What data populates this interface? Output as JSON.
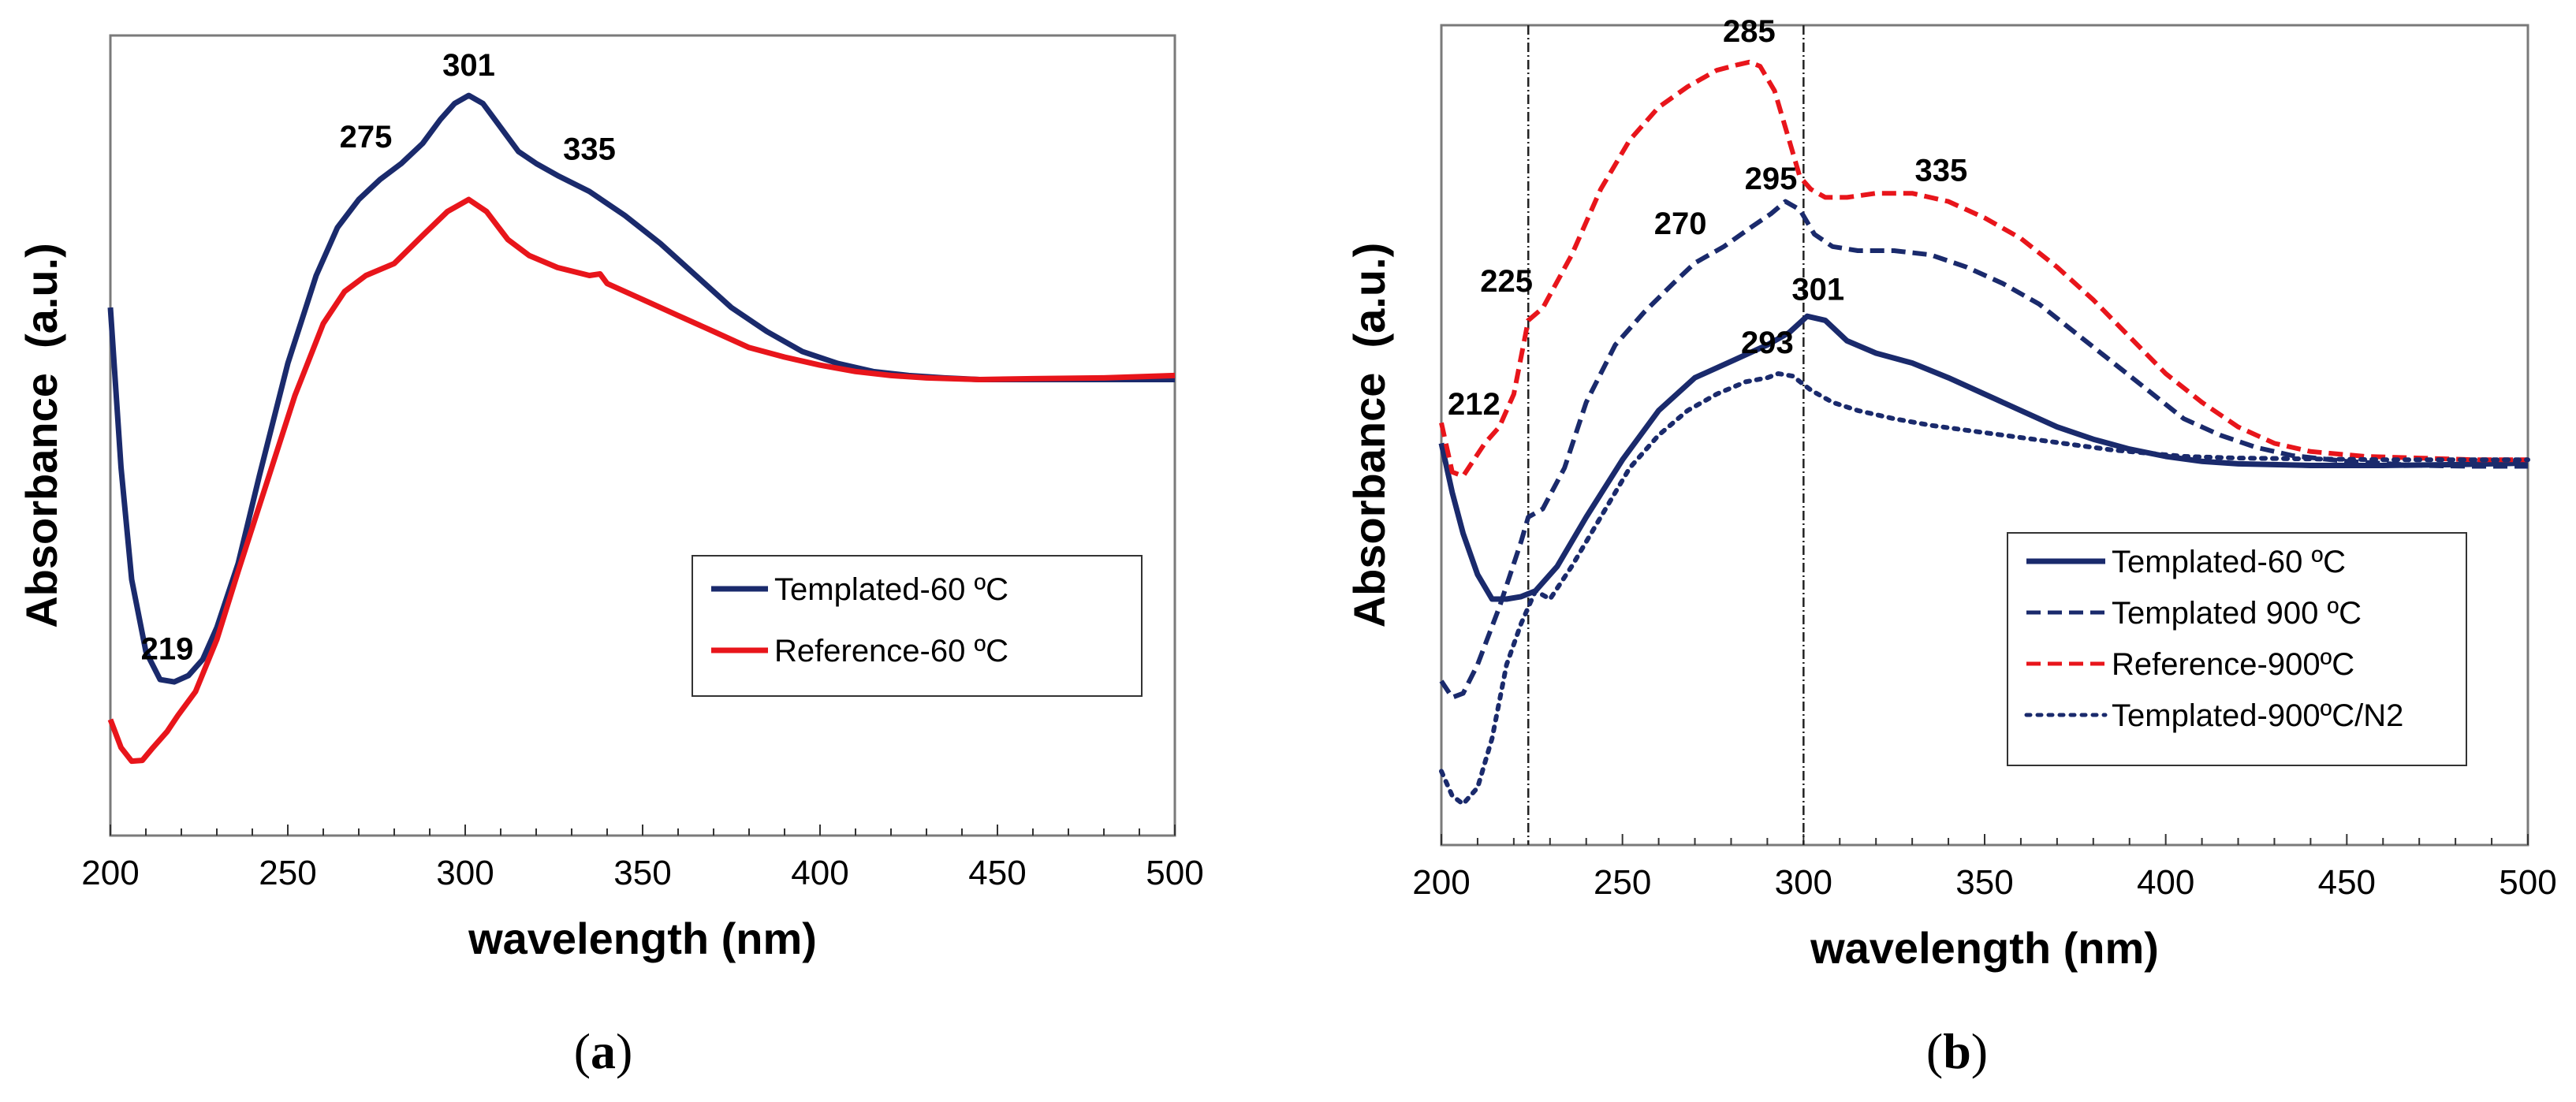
{
  "chart_data": [
    {
      "panel": "a",
      "panel_label": "a",
      "type": "line",
      "xlabel": "wavelength (nm)",
      "ylabel": "Absorbance  (a.u.)",
      "xlim": [
        200,
        500
      ],
      "ylim": [
        0,
        1
      ],
      "x_ticks": [
        "200",
        "250",
        "300",
        "350",
        "400",
        "450",
        "500"
      ],
      "y_ticks": [],
      "legend_position": "center-right",
      "colors": {
        "navy": "#1a2a6c",
        "red": "#e8151b"
      },
      "series": [
        {
          "name": "Templated-60 ºC",
          "color": "#1a2a6c",
          "style": "solid",
          "points": [
            [
              200,
              0.66
            ],
            [
              203,
              0.46
            ],
            [
              206,
              0.32
            ],
            [
              210,
              0.23
            ],
            [
              214,
              0.195
            ],
            [
              218,
              0.192
            ],
            [
              222,
              0.2
            ],
            [
              226,
              0.22
            ],
            [
              230,
              0.26
            ],
            [
              236,
              0.34
            ],
            [
              242,
              0.45
            ],
            [
              250,
              0.59
            ],
            [
              258,
              0.7
            ],
            [
              264,
              0.76
            ],
            [
              270,
              0.795
            ],
            [
              276,
              0.82
            ],
            [
              282,
              0.84
            ],
            [
              288,
              0.865
            ],
            [
              293,
              0.895
            ],
            [
              297,
              0.915
            ],
            [
              301,
              0.925
            ],
            [
              305,
              0.915
            ],
            [
              310,
              0.885
            ],
            [
              315,
              0.855
            ],
            [
              320,
              0.84
            ],
            [
              326,
              0.825
            ],
            [
              335,
              0.805
            ],
            [
              345,
              0.775
            ],
            [
              355,
              0.74
            ],
            [
              365,
              0.7
            ],
            [
              375,
              0.66
            ],
            [
              385,
              0.63
            ],
            [
              395,
              0.605
            ],
            [
              405,
              0.59
            ],
            [
              415,
              0.58
            ],
            [
              425,
              0.575
            ],
            [
              435,
              0.572
            ],
            [
              445,
              0.57
            ],
            [
              460,
              0.57
            ],
            [
              480,
              0.57
            ],
            [
              500,
              0.57
            ]
          ]
        },
        {
          "name": "Reference-60 ºC",
          "color": "#e8151b",
          "style": "solid",
          "points": [
            [
              200,
              0.145
            ],
            [
              203,
              0.11
            ],
            [
              206,
              0.093
            ],
            [
              209,
              0.094
            ],
            [
              212,
              0.11
            ],
            [
              216,
              0.13
            ],
            [
              219,
              0.15
            ],
            [
              224,
              0.18
            ],
            [
              230,
              0.245
            ],
            [
              236,
              0.33
            ],
            [
              244,
              0.44
            ],
            [
              252,
              0.55
            ],
            [
              260,
              0.64
            ],
            [
              266,
              0.68
            ],
            [
              272,
              0.7
            ],
            [
              280,
              0.715
            ],
            [
              288,
              0.75
            ],
            [
              295,
              0.78
            ],
            [
              301,
              0.795
            ],
            [
              306,
              0.78
            ],
            [
              312,
              0.745
            ],
            [
              318,
              0.725
            ],
            [
              326,
              0.71
            ],
            [
              335,
              0.7
            ],
            [
              338,
              0.702
            ],
            [
              340,
              0.69
            ],
            [
              350,
              0.67
            ],
            [
              360,
              0.65
            ],
            [
              370,
              0.63
            ],
            [
              380,
              0.61
            ],
            [
              390,
              0.598
            ],
            [
              400,
              0.588
            ],
            [
              410,
              0.58
            ],
            [
              420,
              0.575
            ],
            [
              430,
              0.572
            ],
            [
              445,
              0.57
            ],
            [
              460,
              0.571
            ],
            [
              480,
              0.572
            ],
            [
              500,
              0.575
            ]
          ]
        }
      ],
      "annotations": [
        {
          "text": "301",
          "x": 301,
          "y": 0.95
        },
        {
          "text": "275",
          "x": 272,
          "y": 0.86
        },
        {
          "text": "335",
          "x": 335,
          "y": 0.845
        },
        {
          "text": "219",
          "x": 216,
          "y": 0.22
        }
      ]
    },
    {
      "panel": "b",
      "panel_label": "b",
      "type": "line",
      "xlabel": "wavelength (nm)",
      "ylabel": "Absorbance  (a.u.)",
      "xlim": [
        200,
        500
      ],
      "ylim": [
        0,
        1
      ],
      "x_ticks": [
        "200",
        "250",
        "300",
        "350",
        "400",
        "450",
        "500"
      ],
      "y_ticks": [],
      "legend_position": "bottom-right",
      "vertical_lines": [
        224,
        300
      ],
      "colors": {
        "navy": "#1a2a6c",
        "red": "#e8151b"
      },
      "series": [
        {
          "name": "Templated-60 ºC",
          "color": "#1a2a6c",
          "style": "solid",
          "points": [
            [
              200,
              0.49
            ],
            [
              203,
              0.43
            ],
            [
              206,
              0.38
            ],
            [
              210,
              0.33
            ],
            [
              214,
              0.3
            ],
            [
              218,
              0.3
            ],
            [
              222,
              0.303
            ],
            [
              226,
              0.31
            ],
            [
              232,
              0.34
            ],
            [
              240,
              0.4
            ],
            [
              250,
              0.47
            ],
            [
              260,
              0.53
            ],
            [
              270,
              0.57
            ],
            [
              280,
              0.59
            ],
            [
              290,
              0.61
            ],
            [
              296,
              0.625
            ],
            [
              301,
              0.645
            ],
            [
              306,
              0.64
            ],
            [
              312,
              0.615
            ],
            [
              320,
              0.6
            ],
            [
              330,
              0.588
            ],
            [
              340,
              0.57
            ],
            [
              350,
              0.55
            ],
            [
              360,
              0.53
            ],
            [
              370,
              0.51
            ],
            [
              380,
              0.495
            ],
            [
              390,
              0.483
            ],
            [
              400,
              0.474
            ],
            [
              410,
              0.468
            ],
            [
              420,
              0.465
            ],
            [
              440,
              0.463
            ],
            [
              460,
              0.463
            ],
            [
              480,
              0.464
            ],
            [
              500,
              0.466
            ]
          ]
        },
        {
          "name": "Templated 900 ºC",
          "color": "#1a2a6c",
          "style": "dashed",
          "points": [
            [
              200,
              0.2
            ],
            [
              203,
              0.18
            ],
            [
              206,
              0.185
            ],
            [
              210,
              0.22
            ],
            [
              216,
              0.29
            ],
            [
              222,
              0.37
            ],
            [
              224,
              0.4
            ],
            [
              228,
              0.41
            ],
            [
              234,
              0.46
            ],
            [
              240,
              0.54
            ],
            [
              248,
              0.61
            ],
            [
              256,
              0.65
            ],
            [
              264,
              0.685
            ],
            [
              270,
              0.71
            ],
            [
              278,
              0.73
            ],
            [
              286,
              0.755
            ],
            [
              291,
              0.77
            ],
            [
              295,
              0.785
            ],
            [
              299,
              0.775
            ],
            [
              303,
              0.745
            ],
            [
              308,
              0.73
            ],
            [
              315,
              0.725
            ],
            [
              325,
              0.725
            ],
            [
              335,
              0.72
            ],
            [
              345,
              0.705
            ],
            [
              355,
              0.685
            ],
            [
              365,
              0.66
            ],
            [
              375,
              0.625
            ],
            [
              385,
              0.59
            ],
            [
              395,
              0.555
            ],
            [
              405,
              0.52
            ],
            [
              415,
              0.5
            ],
            [
              425,
              0.485
            ],
            [
              435,
              0.475
            ],
            [
              450,
              0.468
            ],
            [
              470,
              0.463
            ],
            [
              485,
              0.462
            ],
            [
              500,
              0.462
            ]
          ]
        },
        {
          "name": "Reference-900ºC",
          "color": "#e8151b",
          "style": "dashed",
          "points": [
            [
              200,
              0.515
            ],
            [
              203,
              0.455
            ],
            [
              206,
              0.45
            ],
            [
              209,
              0.47
            ],
            [
              212,
              0.49
            ],
            [
              216,
              0.51
            ],
            [
              220,
              0.55
            ],
            [
              224,
              0.64
            ],
            [
              228,
              0.655
            ],
            [
              236,
              0.72
            ],
            [
              244,
              0.8
            ],
            [
              252,
              0.86
            ],
            [
              260,
              0.9
            ],
            [
              268,
              0.925
            ],
            [
              276,
              0.945
            ],
            [
              282,
              0.952
            ],
            [
              285,
              0.955
            ],
            [
              288,
              0.95
            ],
            [
              292,
              0.92
            ],
            [
              296,
              0.86
            ],
            [
              299,
              0.815
            ],
            [
              302,
              0.8
            ],
            [
              306,
              0.79
            ],
            [
              312,
              0.79
            ],
            [
              320,
              0.795
            ],
            [
              330,
              0.795
            ],
            [
              340,
              0.785
            ],
            [
              350,
              0.765
            ],
            [
              360,
              0.74
            ],
            [
              370,
              0.705
            ],
            [
              380,
              0.665
            ],
            [
              390,
              0.62
            ],
            [
              400,
              0.575
            ],
            [
              410,
              0.54
            ],
            [
              420,
              0.51
            ],
            [
              430,
              0.49
            ],
            [
              440,
              0.48
            ],
            [
              455,
              0.474
            ],
            [
              470,
              0.472
            ],
            [
              485,
              0.47
            ],
            [
              500,
              0.47
            ]
          ]
        },
        {
          "name": "Templated-900ºC/N2",
          "color": "#1a2a6c",
          "style": "dotted",
          "points": [
            [
              200,
              0.09
            ],
            [
              203,
              0.06
            ],
            [
              206,
              0.05
            ],
            [
              210,
              0.07
            ],
            [
              214,
              0.13
            ],
            [
              218,
              0.22
            ],
            [
              222,
              0.27
            ],
            [
              226,
              0.31
            ],
            [
              230,
              0.3
            ],
            [
              236,
              0.34
            ],
            [
              244,
              0.4
            ],
            [
              252,
              0.46
            ],
            [
              260,
              0.5
            ],
            [
              268,
              0.53
            ],
            [
              276,
              0.55
            ],
            [
              284,
              0.565
            ],
            [
              290,
              0.57
            ],
            [
              293,
              0.575
            ],
            [
              297,
              0.572
            ],
            [
              302,
              0.555
            ],
            [
              308,
              0.54
            ],
            [
              315,
              0.53
            ],
            [
              325,
              0.52
            ],
            [
              335,
              0.512
            ],
            [
              345,
              0.506
            ],
            [
              355,
              0.5
            ],
            [
              365,
              0.494
            ],
            [
              375,
              0.488
            ],
            [
              385,
              0.482
            ],
            [
              395,
              0.478
            ],
            [
              405,
              0.474
            ],
            [
              420,
              0.472
            ],
            [
              440,
              0.471
            ],
            [
              460,
              0.47
            ],
            [
              480,
              0.47
            ],
            [
              500,
              0.47
            ]
          ]
        }
      ],
      "annotations": [
        {
          "text": "285",
          "x": 285,
          "y": 0.98
        },
        {
          "text": "295",
          "x": 291,
          "y": 0.8
        },
        {
          "text": "335",
          "x": 338,
          "y": 0.81
        },
        {
          "text": "270",
          "x": 266,
          "y": 0.745
        },
        {
          "text": "225",
          "x": 218,
          "y": 0.675
        },
        {
          "text": "301",
          "x": 304,
          "y": 0.665
        },
        {
          "text": "293",
          "x": 290,
          "y": 0.6
        },
        {
          "text": "212",
          "x": 209,
          "y": 0.525
        }
      ]
    }
  ]
}
